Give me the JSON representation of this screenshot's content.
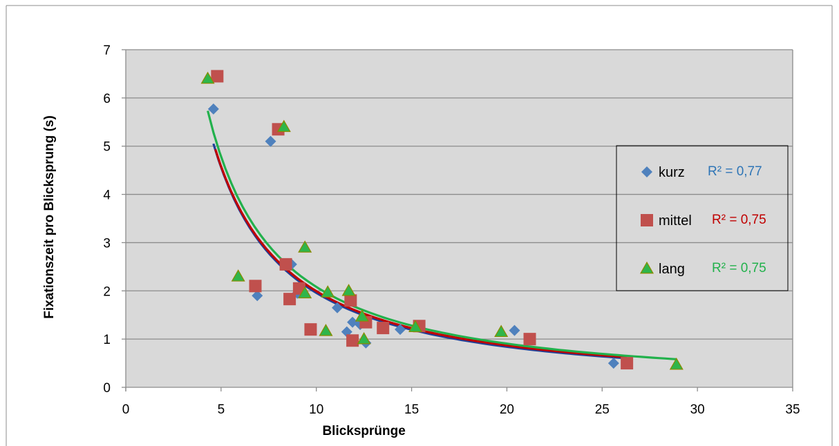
{
  "chart_data": {
    "type": "scatter",
    "title": "",
    "xlabel": "Blicksprünge",
    "ylabel": "Fixationszeit pro Blicksprung (s)",
    "xlim": [
      0,
      35
    ],
    "ylim": [
      0,
      7
    ],
    "x_ticks": [
      "0",
      "5",
      "10",
      "15",
      "20",
      "25",
      "30",
      "35"
    ],
    "y_ticks": [
      "0",
      "1",
      "2",
      "3",
      "4",
      "5",
      "6",
      "7"
    ],
    "grid": "horizontal",
    "plot_background": "#d9d9d9",
    "legend_position": "right",
    "series": [
      {
        "name": "kurz",
        "marker": "diamond",
        "color": "#4f81bd",
        "trend_color": "#1f3f99",
        "r2_label": "R² = 0,77",
        "r2_color": "#2e75b6",
        "trendline": {
          "type": "power",
          "a": 32.5,
          "b": -1.22,
          "x_range": [
            4.6,
            26.3
          ]
        },
        "points": [
          {
            "x": 4.6,
            "y": 5.77
          },
          {
            "x": 7.6,
            "y": 5.1
          },
          {
            "x": 6.9,
            "y": 1.9
          },
          {
            "x": 8.7,
            "y": 2.55
          },
          {
            "x": 9.0,
            "y": 1.95
          },
          {
            "x": 11.1,
            "y": 1.65
          },
          {
            "x": 11.6,
            "y": 1.15
          },
          {
            "x": 11.9,
            "y": 1.35
          },
          {
            "x": 12.3,
            "y": 1.3
          },
          {
            "x": 12.6,
            "y": 0.92
          },
          {
            "x": 14.4,
            "y": 1.2
          },
          {
            "x": 20.4,
            "y": 1.18
          },
          {
            "x": 25.6,
            "y": 0.5
          }
        ]
      },
      {
        "name": "mittel",
        "marker": "square",
        "color": "#c0504d",
        "trend_color": "#c00000",
        "r2_label": "R² = 0,75",
        "r2_color": "#c00000",
        "trendline": {
          "type": "power",
          "a": 31.6,
          "b": -1.2,
          "x_range": [
            4.7,
            26.3
          ]
        },
        "points": [
          {
            "x": 4.8,
            "y": 6.45
          },
          {
            "x": 8.0,
            "y": 5.35
          },
          {
            "x": 6.8,
            "y": 2.1
          },
          {
            "x": 8.4,
            "y": 2.55
          },
          {
            "x": 8.6,
            "y": 1.83
          },
          {
            "x": 9.1,
            "y": 2.05
          },
          {
            "x": 9.7,
            "y": 1.2
          },
          {
            "x": 11.8,
            "y": 1.8
          },
          {
            "x": 11.9,
            "y": 0.97
          },
          {
            "x": 12.6,
            "y": 1.35
          },
          {
            "x": 13.5,
            "y": 1.23
          },
          {
            "x": 15.4,
            "y": 1.27
          },
          {
            "x": 21.2,
            "y": 1.0
          },
          {
            "x": 26.3,
            "y": 0.5
          }
        ]
      },
      {
        "name": "lang",
        "marker": "triangle",
        "color": "#2fb54a",
        "trend_color": "#22b14c",
        "r2_label": "R² = 0,75",
        "r2_color": "#22b14c",
        "trendline": {
          "type": "power",
          "a": 33.0,
          "b": -1.2,
          "x_range": [
            4.3,
            28.9
          ]
        },
        "points": [
          {
            "x": 4.3,
            "y": 6.4
          },
          {
            "x": 8.3,
            "y": 5.4
          },
          {
            "x": 5.9,
            "y": 2.3
          },
          {
            "x": 9.4,
            "y": 2.9
          },
          {
            "x": 9.4,
            "y": 1.95
          },
          {
            "x": 10.5,
            "y": 1.17
          },
          {
            "x": 10.6,
            "y": 1.97
          },
          {
            "x": 11.7,
            "y": 2.0
          },
          {
            "x": 12.4,
            "y": 1.47
          },
          {
            "x": 12.5,
            "y": 1.0
          },
          {
            "x": 15.2,
            "y": 1.25
          },
          {
            "x": 19.7,
            "y": 1.15
          },
          {
            "x": 28.9,
            "y": 0.47
          }
        ]
      }
    ]
  }
}
